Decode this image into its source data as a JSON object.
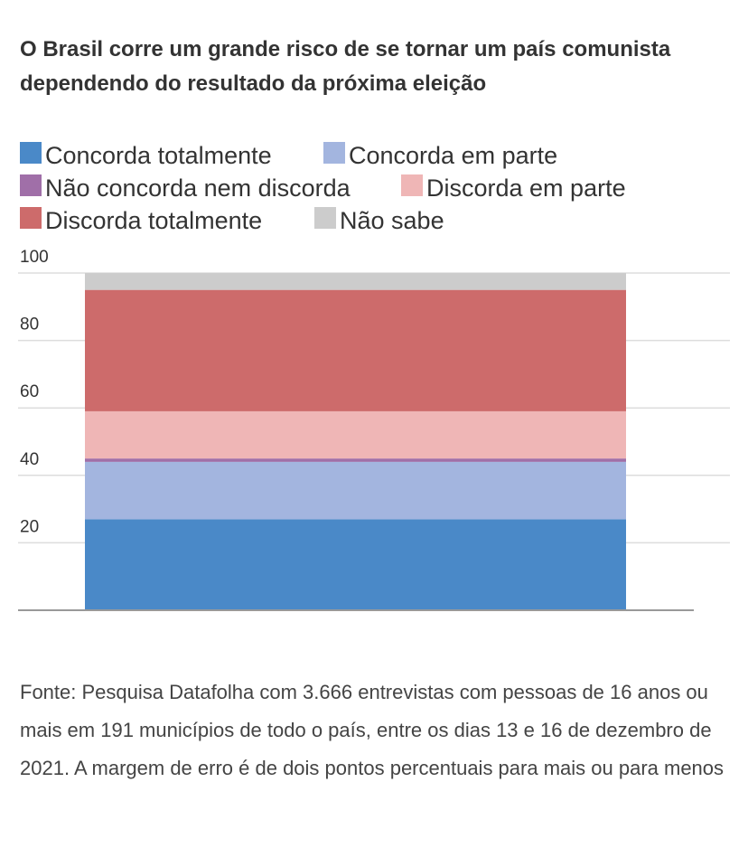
{
  "title": "O Brasil corre um grande risco de se tornar um país comunista dependendo do resultado da próxima eleição",
  "source": "Fonte: Pesquisa Datafolha com 3.666 entrevistas com pessoas de 16 anos ou mais em 191 municípios de todo o país, entre os dias 13 e 16 de dezembro de 2021. A margem de erro é de dois pontos percentuais para mais ou para menos",
  "chart_data": {
    "type": "bar",
    "stacked": true,
    "categories": [
      ""
    ],
    "ylim": [
      0,
      100
    ],
    "yticks": [
      20,
      40,
      60,
      80,
      100
    ],
    "grid": true,
    "legend_position": "top",
    "series": [
      {
        "name": "Concorda totalmente",
        "color": "#4a89c8",
        "values": [
          27
        ]
      },
      {
        "name": "Concorda em parte",
        "color": "#a3b5df",
        "values": [
          17
        ]
      },
      {
        "name": "Não concorda nem discorda",
        "color": "#a06fa8",
        "values": [
          1
        ]
      },
      {
        "name": "Discorda em parte",
        "color": "#efb6b6",
        "values": [
          14
        ]
      },
      {
        "name": "Discorda totalmente",
        "color": "#cd6b6b",
        "values": [
          36
        ]
      },
      {
        "name": "Não sabe",
        "color": "#cccccc",
        "values": [
          5
        ]
      }
    ]
  }
}
